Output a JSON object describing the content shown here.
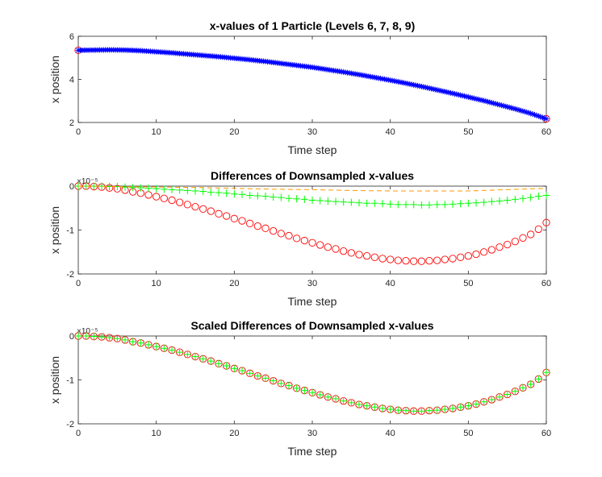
{
  "chart_data": [
    {
      "type": "scatter",
      "title": "x-values of 1 Particle (Levels 6, 7, 8, 9)",
      "xlabel": "Time step",
      "ylabel": "x position",
      "xlim": [
        0,
        60
      ],
      "ylim": [
        2,
        6
      ],
      "xticks": [
        "0",
        "10",
        "20",
        "30",
        "40",
        "50",
        "60"
      ],
      "yticks": [
        "2",
        "4",
        "6"
      ],
      "multiplier": "",
      "colors": {
        "level6": "#ff0000",
        "level9": "#0000ff"
      },
      "x": {
        "start": 0,
        "end": 60,
        "count": 241
      },
      "series": [
        {
          "marker": "circle",
          "color": "#ff0000",
          "x": [
            0,
            60
          ],
          "values": [
            5.35,
            2.17
          ]
        },
        {
          "marker": "asterisk",
          "color": "#0000ff",
          "x": [
            0,
            2,
            4,
            6,
            8,
            10,
            12,
            14,
            16,
            18,
            20,
            22,
            24,
            26,
            28,
            30,
            32,
            34,
            36,
            38,
            40,
            42,
            44,
            46,
            48,
            50,
            52,
            54,
            56,
            58,
            60
          ],
          "values": [
            5.35,
            5.36,
            5.37,
            5.36,
            5.33,
            5.28,
            5.23,
            5.17,
            5.11,
            5.05,
            4.98,
            4.91,
            4.83,
            4.74,
            4.65,
            4.56,
            4.45,
            4.34,
            4.22,
            4.09,
            3.96,
            3.82,
            3.67,
            3.51,
            3.35,
            3.18,
            3.01,
            2.82,
            2.63,
            2.42,
            2.17
          ]
        }
      ]
    },
    {
      "type": "scatter",
      "title": "Differences of Downsampled x-values",
      "xlabel": "Time step",
      "ylabel": "x position",
      "xlim": [
        0,
        60
      ],
      "ylim": [
        -2,
        0
      ],
      "xticks": [
        "0",
        "10",
        "20",
        "30",
        "40",
        "50",
        "60"
      ],
      "yticks": [
        "-2",
        "-1",
        "0"
      ],
      "multiplier": "×10⁻⁵",
      "series": [
        {
          "marker": "circle",
          "color": "#ff0000",
          "x": [
            0,
            1,
            2,
            3,
            4,
            5,
            6,
            7,
            8,
            9,
            10,
            11,
            12,
            13,
            14,
            15,
            16,
            17,
            18,
            19,
            20,
            21,
            22,
            23,
            24,
            25,
            26,
            27,
            28,
            29,
            30,
            31,
            32,
            33,
            34,
            35,
            36,
            37,
            38,
            39,
            40,
            41,
            42,
            43,
            44,
            45,
            46,
            47,
            48,
            49,
            50,
            51,
            52,
            53,
            54,
            55,
            56,
            57,
            58,
            59,
            60
          ],
          "values": [
            0,
            0,
            -0.01,
            -0.02,
            -0.04,
            -0.06,
            -0.09,
            -0.13,
            -0.16,
            -0.2,
            -0.24,
            -0.28,
            -0.32,
            -0.37,
            -0.42,
            -0.47,
            -0.52,
            -0.57,
            -0.63,
            -0.68,
            -0.74,
            -0.79,
            -0.85,
            -0.91,
            -0.96,
            -1.02,
            -1.08,
            -1.13,
            -1.19,
            -1.24,
            -1.29,
            -1.34,
            -1.39,
            -1.43,
            -1.48,
            -1.52,
            -1.56,
            -1.59,
            -1.62,
            -1.65,
            -1.67,
            -1.69,
            -1.7,
            -1.71,
            -1.71,
            -1.7,
            -1.69,
            -1.67,
            -1.65,
            -1.62,
            -1.59,
            -1.55,
            -1.5,
            -1.45,
            -1.39,
            -1.33,
            -1.26,
            -1.18,
            -1.1,
            -0.98,
            -0.83
          ]
        },
        {
          "marker": "plus",
          "color": "#00ff00",
          "x": [
            0,
            1,
            2,
            3,
            4,
            5,
            6,
            7,
            8,
            9,
            10,
            11,
            12,
            13,
            14,
            15,
            16,
            17,
            18,
            19,
            20,
            21,
            22,
            23,
            24,
            25,
            26,
            27,
            28,
            29,
            30,
            31,
            32,
            33,
            34,
            35,
            36,
            37,
            38,
            39,
            40,
            41,
            42,
            43,
            44,
            45,
            46,
            47,
            48,
            49,
            50,
            51,
            52,
            53,
            54,
            55,
            56,
            57,
            58,
            59,
            60
          ],
          "values": [
            0,
            0,
            0,
            0,
            -0.01,
            -0.01,
            -0.02,
            -0.03,
            -0.04,
            -0.05,
            -0.06,
            -0.07,
            -0.08,
            -0.09,
            -0.1,
            -0.11,
            -0.12,
            -0.14,
            -0.15,
            -0.16,
            -0.18,
            -0.19,
            -0.21,
            -0.22,
            -0.23,
            -0.25,
            -0.26,
            -0.28,
            -0.29,
            -0.3,
            -0.32,
            -0.33,
            -0.34,
            -0.35,
            -0.36,
            -0.37,
            -0.38,
            -0.39,
            -0.39,
            -0.4,
            -0.41,
            -0.42,
            -0.42,
            -0.42,
            -0.43,
            -0.43,
            -0.42,
            -0.42,
            -0.41,
            -0.4,
            -0.39,
            -0.38,
            -0.37,
            -0.35,
            -0.34,
            -0.32,
            -0.3,
            -0.28,
            -0.26,
            -0.23,
            -0.21
          ]
        },
        {
          "marker": "dashed-line",
          "color": "#ff9900",
          "x": [
            0,
            5,
            10,
            15,
            20,
            25,
            30,
            35,
            40,
            45,
            50,
            55,
            60
          ],
          "values": [
            0,
            -0.01,
            -0.02,
            -0.03,
            -0.05,
            -0.07,
            -0.08,
            -0.1,
            -0.11,
            -0.11,
            -0.11,
            -0.08,
            -0.05
          ]
        }
      ]
    },
    {
      "type": "scatter",
      "title": "Scaled Differences of Downsampled x-values",
      "xlabel": "Time step",
      "ylabel": "x position",
      "xlim": [
        0,
        60
      ],
      "ylim": [
        -2,
        0
      ],
      "xticks": [
        "0",
        "10",
        "20",
        "30",
        "40",
        "50",
        "60"
      ],
      "yticks": [
        "-2",
        "-1",
        "0"
      ],
      "multiplier": "×10⁻⁵",
      "series": [
        {
          "marker": "circle",
          "color": "#ff0000",
          "x": [
            0,
            1,
            2,
            3,
            4,
            5,
            6,
            7,
            8,
            9,
            10,
            11,
            12,
            13,
            14,
            15,
            16,
            17,
            18,
            19,
            20,
            21,
            22,
            23,
            24,
            25,
            26,
            27,
            28,
            29,
            30,
            31,
            32,
            33,
            34,
            35,
            36,
            37,
            38,
            39,
            40,
            41,
            42,
            43,
            44,
            45,
            46,
            47,
            48,
            49,
            50,
            51,
            52,
            53,
            54,
            55,
            56,
            57,
            58,
            59,
            60
          ],
          "values": [
            0,
            0,
            -0.01,
            -0.02,
            -0.04,
            -0.06,
            -0.09,
            -0.13,
            -0.16,
            -0.2,
            -0.24,
            -0.28,
            -0.32,
            -0.37,
            -0.42,
            -0.47,
            -0.52,
            -0.57,
            -0.63,
            -0.68,
            -0.74,
            -0.79,
            -0.85,
            -0.91,
            -0.96,
            -1.02,
            -1.08,
            -1.13,
            -1.19,
            -1.24,
            -1.29,
            -1.34,
            -1.39,
            -1.43,
            -1.48,
            -1.52,
            -1.56,
            -1.59,
            -1.62,
            -1.65,
            -1.67,
            -1.69,
            -1.7,
            -1.71,
            -1.71,
            -1.7,
            -1.69,
            -1.67,
            -1.65,
            -1.62,
            -1.59,
            -1.55,
            -1.5,
            -1.45,
            -1.39,
            -1.33,
            -1.26,
            -1.18,
            -1.1,
            -0.98,
            -0.83
          ]
        },
        {
          "marker": "plus",
          "color": "#00ff00",
          "x": [
            0,
            1,
            2,
            3,
            4,
            5,
            6,
            7,
            8,
            9,
            10,
            11,
            12,
            13,
            14,
            15,
            16,
            17,
            18,
            19,
            20,
            21,
            22,
            23,
            24,
            25,
            26,
            27,
            28,
            29,
            30,
            31,
            32,
            33,
            34,
            35,
            36,
            37,
            38,
            39,
            40,
            41,
            42,
            43,
            44,
            45,
            46,
            47,
            48,
            49,
            50,
            51,
            52,
            53,
            54,
            55,
            56,
            57,
            58,
            59,
            60
          ],
          "values": [
            0,
            0,
            -0.01,
            -0.02,
            -0.04,
            -0.06,
            -0.09,
            -0.13,
            -0.16,
            -0.2,
            -0.24,
            -0.28,
            -0.32,
            -0.37,
            -0.42,
            -0.47,
            -0.52,
            -0.57,
            -0.63,
            -0.68,
            -0.74,
            -0.79,
            -0.85,
            -0.91,
            -0.96,
            -1.02,
            -1.08,
            -1.13,
            -1.19,
            -1.24,
            -1.29,
            -1.34,
            -1.39,
            -1.43,
            -1.48,
            -1.52,
            -1.56,
            -1.59,
            -1.62,
            -1.65,
            -1.67,
            -1.69,
            -1.7,
            -1.71,
            -1.71,
            -1.7,
            -1.69,
            -1.67,
            -1.65,
            -1.62,
            -1.59,
            -1.55,
            -1.5,
            -1.45,
            -1.39,
            -1.33,
            -1.26,
            -1.18,
            -1.1,
            -0.98,
            -0.83
          ]
        }
      ]
    }
  ]
}
